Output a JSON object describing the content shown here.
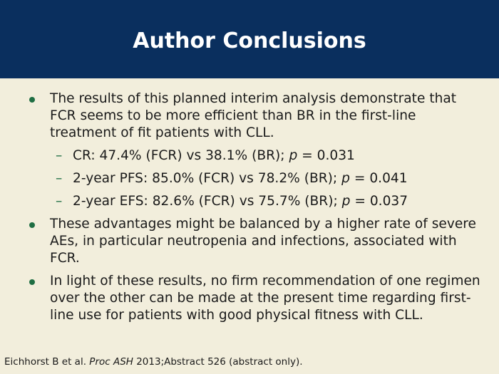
{
  "slide": {
    "title": "Author Conclusions",
    "bullets": [
      "The results of this planned interim analysis demonstrate that FCR seems to be more efficient than BR in the first-line treatment of fit patients with CLL.",
      "These advantages might be balanced by a higher rate of severe AEs, in particular neutropenia and infections, associated with FCR.",
      "In light of these results, no firm recommendation of one regimen over the other can be made at the present time regarding first-line use for patients with good physical fitness with CLL."
    ],
    "sub_bullets": [
      {
        "pre": "CR: 47.4% (FCR) vs 38.1% (BR); ",
        "p": "p",
        "post": " = 0.031"
      },
      {
        "pre": "2-year PFS: 85.0% (FCR) vs 78.2% (BR); ",
        "p": "p",
        "post": " = 0.041"
      },
      {
        "pre": "2-year EFS: 82.6% (FCR) vs 75.7% (BR); ",
        "p": "p",
        "post": " = 0.037"
      }
    ],
    "dash": "–",
    "footer": {
      "authors": "Eichhorst B et al. ",
      "journal": "Proc ASH",
      "rest": " 2013;Abstract 526 (abstract only)."
    },
    "colors": {
      "header_bg": "#0A2F5E",
      "background": "#F2EEDC",
      "bullet": "#1f6e43"
    }
  }
}
